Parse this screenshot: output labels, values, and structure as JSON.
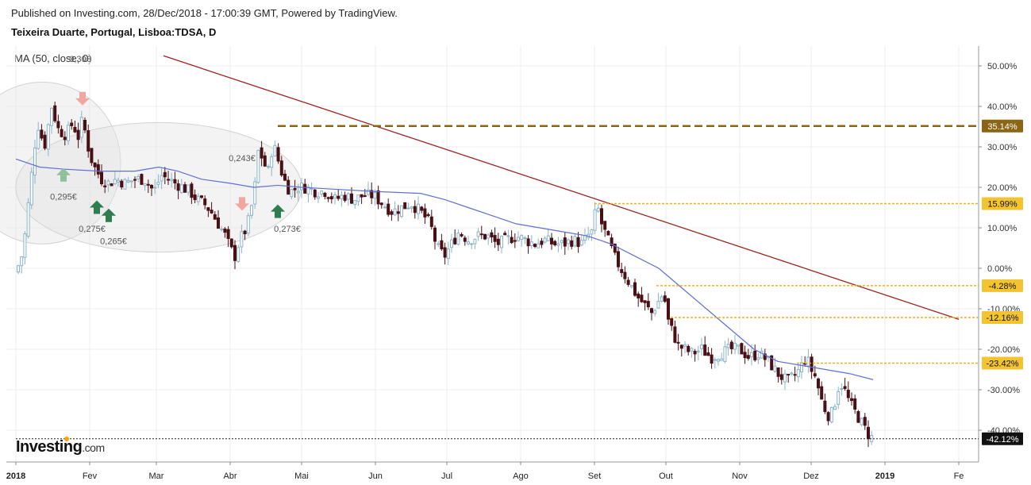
{
  "header": {
    "published": "Published on Investing.com, 28/Dec/2018 - 17:00:39 GMT, Powered by TradingView.",
    "instrument": "Teixeira Duarte, Portugal, Lisboa:TDSA, D"
  },
  "indicator_label": "MA (50, close, 0)",
  "brand": {
    "name": "Investing",
    "domain": ".com",
    "dot_color": "#f5a400"
  },
  "colors": {
    "up_candle": "#8ab4c8",
    "down_candle": "#4a0f14",
    "ma_line": "#5f6fd6",
    "trendline": "#a0231e",
    "resistance_dark": "#8a6514",
    "level_line": "#f2b01e",
    "level_label_bg": "#f4c430",
    "last_price_label_bg": "#111111",
    "arrow_up_strong": "#2e7d4f",
    "arrow_up_light": "#8fbf9f",
    "arrow_down": "#f0a79f"
  },
  "chart_data": {
    "type": "candlestick",
    "title": "Teixeira Duarte, Portugal, Lisboa:TDSA, D",
    "y_unit": "%",
    "ylim": [
      -44,
      54
    ],
    "y_ticks": [
      "50.00%",
      "40.00%",
      "30.00%",
      "20.00%",
      "10.00%",
      "0.00%",
      "-10.00%",
      "-20.00%",
      "-30.00%",
      "-40.00%"
    ],
    "x_ticks": [
      {
        "label": "2018",
        "day": 0
      },
      {
        "label": "Fev",
        "day": 31
      },
      {
        "label": "Mar",
        "day": 59
      },
      {
        "label": "Abr",
        "day": 90
      },
      {
        "label": "Mai",
        "day": 120
      },
      {
        "label": "Jun",
        "day": 151
      },
      {
        "label": "Jul",
        "day": 181
      },
      {
        "label": "Ago",
        "day": 212
      },
      {
        "label": "Set",
        "day": 243
      },
      {
        "label": "Out",
        "day": 273
      },
      {
        "label": "Nov",
        "day": 304
      },
      {
        "label": "Dez",
        "day": 334
      },
      {
        "label": "2019",
        "day": 365
      },
      {
        "label": "Fe",
        "day": 396
      }
    ],
    "grid": true,
    "price_path": [
      [
        0,
        -1
      ],
      [
        3,
        4
      ],
      [
        6,
        20
      ],
      [
        9,
        36
      ],
      [
        12,
        30
      ],
      [
        15,
        40
      ],
      [
        18,
        34
      ],
      [
        21,
        33
      ],
      [
        24,
        36
      ],
      [
        26,
        32
      ],
      [
        28,
        37
      ],
      [
        31,
        28
      ],
      [
        33,
        25
      ],
      [
        36,
        22
      ],
      [
        39,
        21
      ],
      [
        42,
        22
      ],
      [
        46,
        21
      ],
      [
        50,
        22
      ],
      [
        54,
        22
      ],
      [
        58,
        19
      ],
      [
        61,
        23
      ],
      [
        64,
        22
      ],
      [
        67,
        21
      ],
      [
        70,
        20
      ],
      [
        73,
        19
      ],
      [
        76,
        17
      ],
      [
        79,
        16
      ],
      [
        82,
        14
      ],
      [
        85,
        11
      ],
      [
        88,
        8
      ],
      [
        90,
        5
      ],
      [
        92,
        3
      ],
      [
        94,
        7
      ],
      [
        97,
        10
      ],
      [
        100,
        18
      ],
      [
        102,
        30
      ],
      [
        104,
        26
      ],
      [
        106,
        24
      ],
      [
        108,
        31
      ],
      [
        110,
        27
      ],
      [
        112,
        23
      ],
      [
        114,
        20
      ],
      [
        116,
        19
      ],
      [
        118,
        20
      ],
      [
        122,
        20
      ],
      [
        126,
        19
      ],
      [
        130,
        19
      ],
      [
        134,
        17
      ],
      [
        138,
        18
      ],
      [
        142,
        17
      ],
      [
        146,
        18
      ],
      [
        150,
        18
      ],
      [
        154,
        16
      ],
      [
        158,
        14
      ],
      [
        162,
        15
      ],
      [
        166,
        16
      ],
      [
        170,
        14
      ],
      [
        174,
        11
      ],
      [
        177,
        5
      ],
      [
        180,
        3
      ],
      [
        183,
        6
      ],
      [
        186,
        9
      ],
      [
        190,
        7
      ],
      [
        194,
        8
      ],
      [
        198,
        8
      ],
      [
        202,
        6
      ],
      [
        206,
        7
      ],
      [
        210,
        8
      ],
      [
        214,
        7
      ],
      [
        218,
        6
      ],
      [
        222,
        7
      ],
      [
        226,
        6
      ],
      [
        230,
        6
      ],
      [
        234,
        7
      ],
      [
        238,
        6
      ],
      [
        240,
        8
      ],
      [
        242,
        9
      ],
      [
        244,
        16
      ],
      [
        246,
        11
      ],
      [
        248,
        8
      ],
      [
        250,
        5
      ],
      [
        252,
        2
      ],
      [
        255,
        -1
      ],
      [
        258,
        -4
      ],
      [
        261,
        -7
      ],
      [
        264,
        -9
      ],
      [
        267,
        -11
      ],
      [
        270,
        -8
      ],
      [
        272,
        -6
      ],
      [
        274,
        -13
      ],
      [
        276,
        -16
      ],
      [
        278,
        -19
      ],
      [
        281,
        -20
      ],
      [
        284,
        -21
      ],
      [
        288,
        -20
      ],
      [
        292,
        -22
      ],
      [
        296,
        -21
      ],
      [
        300,
        -20
      ],
      [
        304,
        -20
      ],
      [
        308,
        -22
      ],
      [
        312,
        -21
      ],
      [
        316,
        -23
      ],
      [
        320,
        -26
      ],
      [
        324,
        -28
      ],
      [
        328,
        -26
      ],
      [
        330,
        -24
      ],
      [
        332,
        -22
      ],
      [
        334,
        -25
      ],
      [
        336,
        -27
      ],
      [
        338,
        -32
      ],
      [
        340,
        -35
      ],
      [
        342,
        -37
      ],
      [
        344,
        -33
      ],
      [
        346,
        -28
      ],
      [
        348,
        -30
      ],
      [
        350,
        -33
      ],
      [
        352,
        -35
      ],
      [
        354,
        -37
      ],
      [
        356,
        -39
      ],
      [
        358,
        -41
      ],
      [
        360,
        -42.1
      ]
    ],
    "ma_50": [
      [
        0,
        27
      ],
      [
        10,
        25
      ],
      [
        20,
        24.5
      ],
      [
        35,
        24
      ],
      [
        50,
        24
      ],
      [
        60,
        25
      ],
      [
        68,
        24
      ],
      [
        78,
        22
      ],
      [
        90,
        21
      ],
      [
        100,
        20
      ],
      [
        110,
        20.5
      ],
      [
        120,
        20
      ],
      [
        135,
        19.5
      ],
      [
        150,
        19
      ],
      [
        170,
        18.5
      ],
      [
        180,
        17
      ],
      [
        190,
        15
      ],
      [
        200,
        13
      ],
      [
        210,
        11
      ],
      [
        220,
        10
      ],
      [
        230,
        9
      ],
      [
        240,
        8
      ],
      [
        250,
        6
      ],
      [
        260,
        3
      ],
      [
        270,
        0
      ],
      [
        280,
        -5
      ],
      [
        290,
        -10
      ],
      [
        300,
        -15
      ],
      [
        310,
        -20
      ],
      [
        320,
        -23
      ],
      [
        330,
        -24
      ],
      [
        340,
        -25
      ],
      [
        350,
        -26
      ],
      [
        360,
        -27.5
      ]
    ],
    "trendline": {
      "from": {
        "day": 62,
        "pct": 52.5
      },
      "to": {
        "day": 396,
        "pct": -12.6
      }
    },
    "horizontal_levels": [
      {
        "label": "35.14%",
        "pct": 35.14,
        "from_day": 110,
        "style": "dashed-dark"
      },
      {
        "label": "15.99%",
        "pct": 15.99,
        "from_day": 243,
        "style": "dotted-gold"
      },
      {
        "label": "-4.28%",
        "pct": -4.28,
        "from_day": 269,
        "style": "dotted-gold"
      },
      {
        "label": "-12.16%",
        "pct": -12.16,
        "from_day": 275,
        "style": "dotted-gold"
      },
      {
        "label": "-23.42%",
        "pct": -23.42,
        "from_day": 328,
        "style": "dotted-gold"
      },
      {
        "label": "-42.12%",
        "pct": -42.12,
        "from_day": 0,
        "style": "dotted-black",
        "last": true
      }
    ],
    "annotations": [
      {
        "text": "0,295€",
        "day": 20,
        "pct": 17
      },
      {
        "text": "0,275€",
        "day": 32,
        "pct": 9
      },
      {
        "text": "0,265€",
        "day": 41,
        "pct": 6
      },
      {
        "text": "0,243€",
        "day": 95,
        "pct": 26.5
      },
      {
        "text": "0,273€",
        "day": 114,
        "pct": 9
      },
      {
        "text": "0,30€",
        "day": 27,
        "pct": 51
      }
    ],
    "markers": [
      {
        "dir": "up",
        "shade": "light",
        "day": 20,
        "pct": 23
      },
      {
        "dir": "up",
        "shade": "strong",
        "day": 34,
        "pct": 15
      },
      {
        "dir": "up",
        "shade": "strong",
        "day": 39,
        "pct": 13
      },
      {
        "dir": "up",
        "shade": "strong",
        "day": 110,
        "pct": 14
      },
      {
        "dir": "down",
        "shade": "light",
        "day": 28,
        "pct": 42
      },
      {
        "dir": "down",
        "shade": "light",
        "day": 95,
        "pct": 16
      }
    ],
    "highlight_zones": [
      {
        "center_day": 11,
        "center_pct": 26,
        "rx_days": 33,
        "ry_pct": 20
      },
      {
        "center_day": 60,
        "center_pct": 20,
        "rx_days": 60,
        "ry_pct": 16
      }
    ]
  }
}
